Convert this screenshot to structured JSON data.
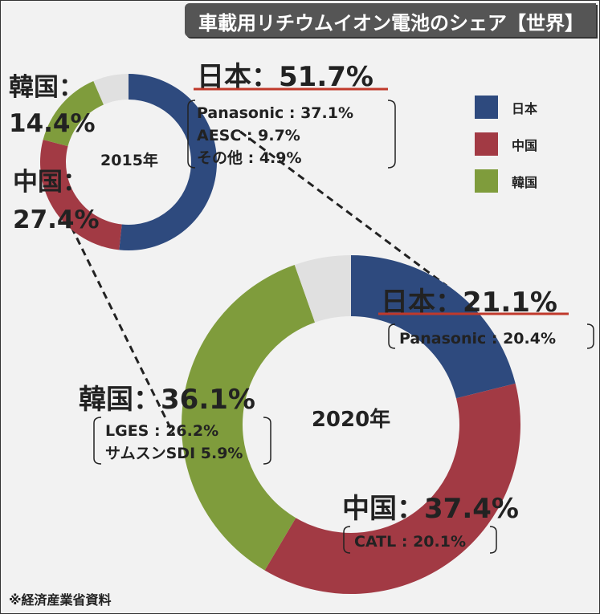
{
  "title": "車載用リチウムイオン電池のシェア【世界】",
  "source": "※経済産業省資料",
  "colors": {
    "japan": "#2e4a7e",
    "china": "#a23a44",
    "korea": "#7f9c3c",
    "other": "#e0e0e0"
  },
  "legend": [
    "日本",
    "中国",
    "韓国"
  ],
  "chart_data": [
    {
      "type": "pie",
      "center_label": "2015年",
      "categories": [
        "日本",
        "中国",
        "韓国",
        "その他"
      ],
      "values": [
        51.7,
        27.4,
        14.4,
        6.5
      ],
      "labels": {
        "japan": "日本：51.7%",
        "china_name": "中国：",
        "china_value": "27.4%",
        "korea_name": "韓国：",
        "korea_value": "14.4%"
      },
      "details": {
        "japan": [
          "Panasonic : 37.1%",
          "AESC : 9.7%",
          "その他 : 4.9%"
        ]
      }
    },
    {
      "type": "pie",
      "center_label": "2020年",
      "categories": [
        "日本",
        "中国",
        "韓国",
        "その他"
      ],
      "values": [
        21.1,
        37.4,
        36.1,
        5.4
      ],
      "labels": {
        "japan": "日本：21.1%",
        "china": "中国：37.4%",
        "korea": "韓国：36.1%"
      },
      "details": {
        "japan": [
          "Panasonic : 20.4%"
        ],
        "china": [
          "CATL : 20.1%"
        ],
        "korea": [
          "LGES : 26.2%",
          "サムスンSDI 5.9%"
        ]
      }
    }
  ]
}
